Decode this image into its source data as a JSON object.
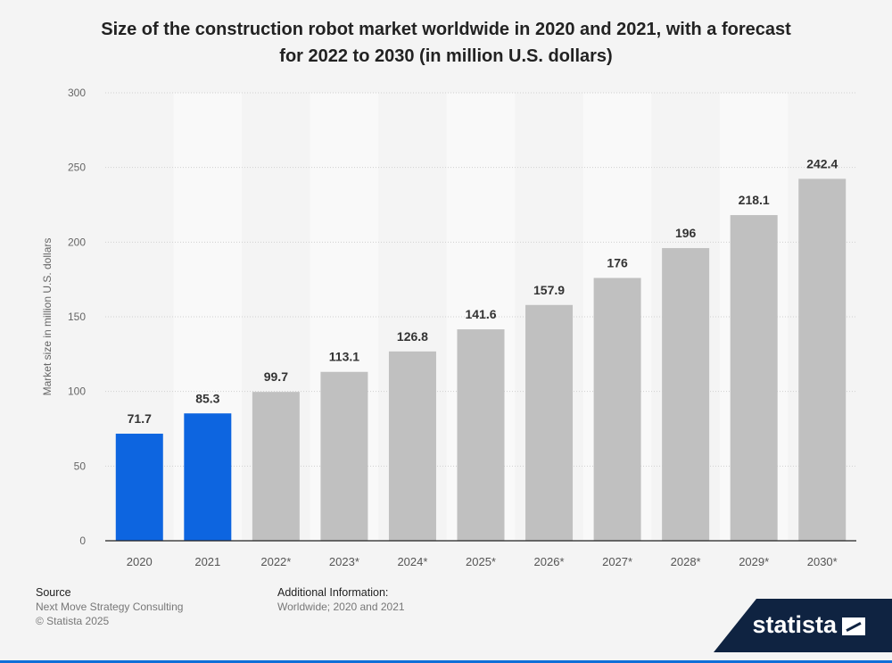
{
  "chart_data": {
    "type": "bar",
    "title": "Size of the construction robot market worldwide in 2020 and 2021, with a forecast for 2022 to 2030 (in million U.S. dollars)",
    "title_lines": [
      "Size of the construction robot market worldwide in 2020 and 2021, with a forecast",
      "for 2022 to 2030 (in million U.S. dollars)"
    ],
    "xlabel": "",
    "ylabel": "Market size in million U.S. dollars",
    "ylim": [
      0,
      300
    ],
    "yticks": [
      0,
      50,
      100,
      150,
      200,
      250,
      300
    ],
    "categories": [
      "2020",
      "2021",
      "2022*",
      "2023*",
      "2024*",
      "2025*",
      "2026*",
      "2027*",
      "2028*",
      "2029*",
      "2030*"
    ],
    "values": [
      71.7,
      85.3,
      99.7,
      113.1,
      126.8,
      141.6,
      157.9,
      176,
      196,
      218.1,
      242.4
    ],
    "value_labels": [
      "71.7",
      "85.3",
      "99.7",
      "113.1",
      "126.8",
      "141.6",
      "157.9",
      "176",
      "196",
      "218.1",
      "242.4"
    ],
    "bar_colors": [
      "#0d65e0",
      "#0d65e0",
      "#c0c0c0",
      "#c0c0c0",
      "#c0c0c0",
      "#c0c0c0",
      "#c0c0c0",
      "#c0c0c0",
      "#c0c0c0",
      "#c0c0c0",
      "#c0c0c0"
    ],
    "grid": true,
    "legend": "none"
  },
  "footer": {
    "source_title": "Source",
    "source_lines": [
      "Next Move Strategy Consulting",
      "© Statista 2025"
    ],
    "info_title": "Additional Information:",
    "info_lines": [
      "Worldwide; 2020 and 2021"
    ]
  },
  "brand": {
    "name": "statista"
  }
}
